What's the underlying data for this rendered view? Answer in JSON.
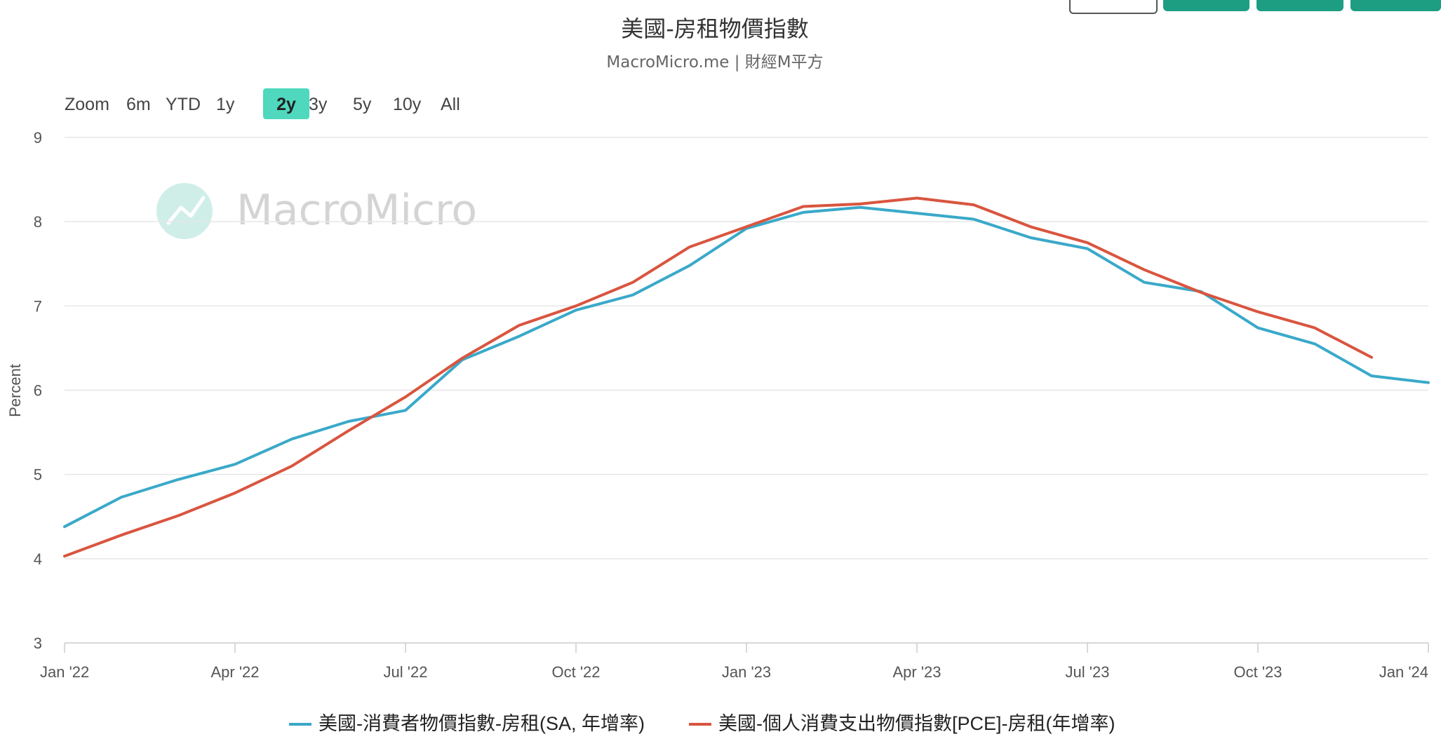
{
  "toolbar": {
    "buttons": [
      "",
      "",
      "",
      ""
    ]
  },
  "range_selector": {
    "label": "Zoom",
    "options": [
      "6m",
      "YTD",
      "1y",
      "2y",
      "3y",
      "5y",
      "10y",
      "All"
    ],
    "selected": "2y"
  },
  "watermark": {
    "text": "MacroMicro"
  },
  "colors": {
    "cpi": "#3aa9c9",
    "pce": "#d9553f",
    "grid": "#e6e6e6",
    "selected_bg": "#4fd8bd",
    "watermark": "#cfeee8",
    "brand_green": "#1d9e83"
  },
  "chart_data": {
    "type": "line",
    "title": "美國-房租物價指數",
    "subtitle": "MacroMicro.me | 財經M平方",
    "ylabel": "Percent",
    "xlabel": "",
    "ylim": [
      3,
      9
    ],
    "yticks": [
      3,
      4,
      5,
      6,
      7,
      8,
      9
    ],
    "xlim": [
      "2022-01",
      "2024-01"
    ],
    "xticks": [
      {
        "date": "2022-01",
        "label": "Jan '22"
      },
      {
        "date": "2022-04",
        "label": "Apr '22"
      },
      {
        "date": "2022-07",
        "label": "Jul '22"
      },
      {
        "date": "2022-10",
        "label": "Oct '22"
      },
      {
        "date": "2023-01",
        "label": "Jan '23"
      },
      {
        "date": "2023-04",
        "label": "Apr '23"
      },
      {
        "date": "2023-07",
        "label": "Jul '23"
      },
      {
        "date": "2023-10",
        "label": "Oct '23"
      },
      {
        "date": "2024-01",
        "label": "Jan '24"
      }
    ],
    "grid": true,
    "legend": "bottom",
    "series": [
      {
        "name": "美國-消費者物價指數-房租(SA, 年增率)",
        "color": "#3aa9c9",
        "points": [
          [
            "2022-01",
            4.38
          ],
          [
            "2022-02",
            4.73
          ],
          [
            "2022-03",
            4.94
          ],
          [
            "2022-04",
            5.12
          ],
          [
            "2022-05",
            5.42
          ],
          [
            "2022-06",
            5.63
          ],
          [
            "2022-07",
            5.76
          ],
          [
            "2022-08",
            6.36
          ],
          [
            "2022-09",
            6.64
          ],
          [
            "2022-10",
            6.95
          ],
          [
            "2022-11",
            7.13
          ],
          [
            "2022-12",
            7.48
          ],
          [
            "2023-01",
            7.92
          ],
          [
            "2023-02",
            8.11
          ],
          [
            "2023-03",
            8.17
          ],
          [
            "2023-04",
            8.1
          ],
          [
            "2023-05",
            8.03
          ],
          [
            "2023-06",
            7.81
          ],
          [
            "2023-07",
            7.68
          ],
          [
            "2023-08",
            7.28
          ],
          [
            "2023-09",
            7.17
          ],
          [
            "2023-10",
            6.74
          ],
          [
            "2023-11",
            6.55
          ],
          [
            "2023-12",
            6.17
          ],
          [
            "2024-01",
            6.09
          ]
        ]
      },
      {
        "name": "美國-個人消費支出物價指數[PCE]-房租(年增率)",
        "color": "#d9553f",
        "points": [
          [
            "2022-01",
            4.03
          ],
          [
            "2022-02",
            4.28
          ],
          [
            "2022-03",
            4.51
          ],
          [
            "2022-04",
            4.78
          ],
          [
            "2022-05",
            5.1
          ],
          [
            "2022-06",
            5.52
          ],
          [
            "2022-07",
            5.92
          ],
          [
            "2022-08",
            6.38
          ],
          [
            "2022-09",
            6.77
          ],
          [
            "2022-10",
            7.0
          ],
          [
            "2022-11",
            7.28
          ],
          [
            "2022-12",
            7.7
          ],
          [
            "2023-01",
            7.94
          ],
          [
            "2023-02",
            8.18
          ],
          [
            "2023-03",
            8.21
          ],
          [
            "2023-04",
            8.28
          ],
          [
            "2023-05",
            8.2
          ],
          [
            "2023-06",
            7.94
          ],
          [
            "2023-07",
            7.75
          ],
          [
            "2023-08",
            7.43
          ],
          [
            "2023-09",
            7.16
          ],
          [
            "2023-10",
            6.93
          ],
          [
            "2023-11",
            6.74
          ],
          [
            "2023-12",
            6.39
          ]
        ]
      }
    ]
  }
}
